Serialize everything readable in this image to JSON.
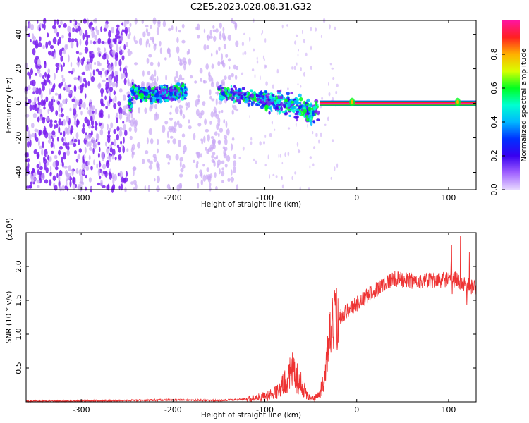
{
  "figure_title": "C2E5.2023.028.08.31.G32",
  "colors": {
    "snr_line": "#ee3333",
    "spectro_core": "#7a1ff0",
    "spectro_faint": "#c9a8f5",
    "colorbar": [
      "#ff14a0",
      "#ff2020",
      "#ffb000",
      "#d8ff00",
      "#00ff20",
      "#00ffd0",
      "#00b8ff",
      "#0030ff",
      "#3800f0",
      "#a060ff",
      "#e8d8ff"
    ]
  },
  "chart_data": [
    {
      "type": "heatmap",
      "title": "",
      "xlabel": "Height of straight line (km)",
      "ylabel": "Frequency (Hz)",
      "xlim": [
        -360,
        130
      ],
      "ylim": [
        -50,
        48
      ],
      "x_ticks": [
        -300,
        -200,
        -100,
        0,
        100
      ],
      "y_ticks": [
        -40,
        -20,
        0,
        20,
        40
      ],
      "colorbar": {
        "label": "Normalized spectral amplitude",
        "range": [
          0,
          1
        ],
        "ticks": [
          "0.0",
          "0.2",
          "0.4",
          "0.6",
          "0.8"
        ]
      },
      "features": {
        "noise_region_x": [
          -360,
          -130
        ],
        "noise_gaps_x": [
          [
            -240,
            -230
          ],
          [
            -215,
            -205
          ],
          [
            -185,
            -175
          ]
        ],
        "signal_track": [
          [
            -245,
            7
          ],
          [
            -225,
            5
          ],
          [
            -200,
            6
          ],
          [
            -190,
            7
          ],
          [
            -150,
            7
          ],
          [
            -130,
            5
          ],
          [
            -110,
            3
          ],
          [
            -90,
            1
          ],
          [
            -75,
            0
          ],
          [
            -60,
            -3
          ],
          [
            -50,
            -6
          ],
          [
            -40,
            -3
          ],
          [
            -30,
            0
          ],
          [
            -20,
            0
          ],
          [
            -10,
            1
          ],
          [
            0,
            0
          ],
          [
            50,
            0
          ],
          [
            100,
            0
          ],
          [
            110,
            1
          ],
          [
            130,
            0
          ]
        ],
        "carrier_start_x": -40,
        "carrier_freq": 0
      }
    },
    {
      "type": "line",
      "title": "",
      "xlabel": "Height of straight line (km)",
      "ylabel": "SNR (10 * v/v)",
      "y_multiplier_label": "(x10⁴)",
      "xlim": [
        -360,
        130
      ],
      "ylim": [
        0,
        2.5
      ],
      "x_ticks": [
        -300,
        -200,
        -100,
        0,
        100
      ],
      "y_ticks": [
        0.5,
        1.0,
        1.5,
        2.0
      ],
      "y_tick_labels": [
        "0.5",
        "1.0",
        "1.5",
        "2.0"
      ],
      "series": [
        {
          "x": [
            -360,
            -300,
            -250,
            -200,
            -150,
            -120,
            -100,
            -90,
            -80,
            -70,
            -60,
            -55,
            -50,
            -45,
            -40,
            -35,
            -30,
            -25,
            -20,
            -10,
            0,
            10,
            20,
            30,
            40,
            50,
            70,
            90,
            100,
            110,
            115,
            120,
            130
          ],
          "values": [
            0.01,
            0.015,
            0.02,
            0.03,
            0.02,
            0.04,
            0.08,
            0.12,
            0.25,
            0.45,
            0.25,
            0.12,
            0.04,
            0.06,
            0.12,
            0.35,
            0.9,
            1.2,
            1.25,
            1.35,
            1.45,
            1.55,
            1.65,
            1.75,
            1.82,
            1.8,
            1.78,
            1.8,
            1.82,
            1.8,
            1.75,
            1.72,
            1.7
          ]
        }
      ]
    }
  ]
}
